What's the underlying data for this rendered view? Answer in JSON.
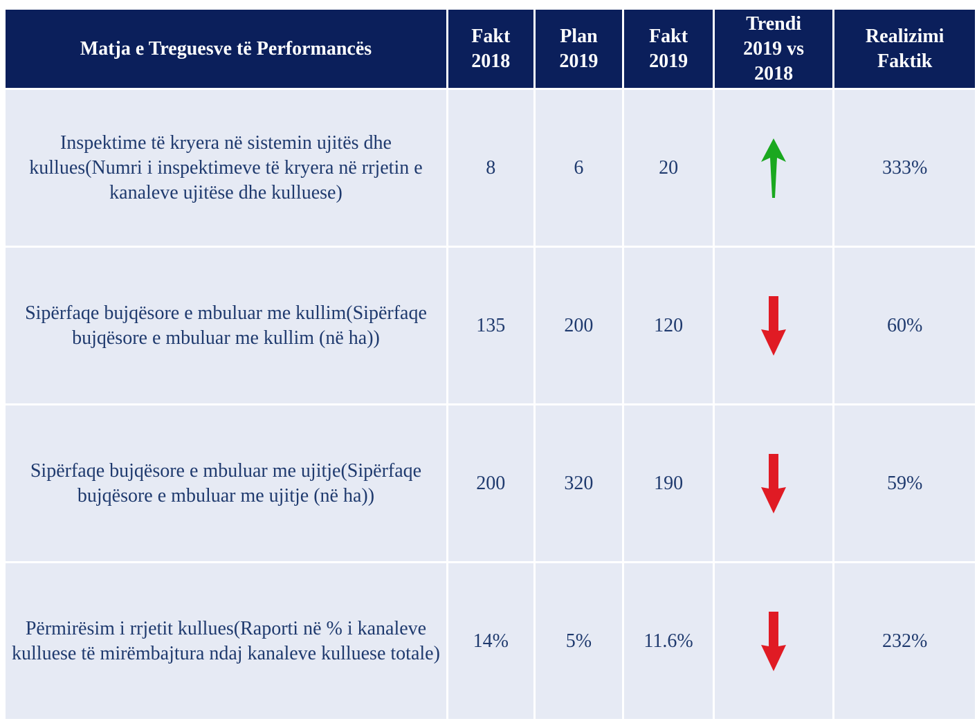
{
  "table": {
    "header": [
      "Matja e Treguesve të Performancës",
      "Fakt 2018",
      "Plan 2019",
      "Fakt 2019",
      "Trendi 2019 vs 2018",
      "Realizimi Faktik"
    ],
    "rows": [
      {
        "indicator": "Inspektime të kryera në sistemin ujitës dhe kullues(Numri i inspektimeve të kryera në rrjetin e kanaleve ujitëse dhe kulluese)",
        "fakt_2018": "8",
        "plan_2019": "6",
        "fakt_2019": "20",
        "trend": "up",
        "realizimi": "333%"
      },
      {
        "indicator": "Sipërfaqe bujqësore e mbuluar me kullim(Sipërfaqe bujqësore e mbuluar me kullim (në ha))",
        "fakt_2018": "135",
        "plan_2019": "200",
        "fakt_2019": "120",
        "trend": "down",
        "realizimi": "60%"
      },
      {
        "indicator": "Sipërfaqe bujqësore e mbuluar me ujitje(Sipërfaqe bujqësore e mbuluar me ujitje (në ha))",
        "fakt_2018": "200",
        "plan_2019": "320",
        "fakt_2019": "190",
        "trend": "down",
        "realizimi": "59%"
      },
      {
        "indicator": "Përmirësim i rrjetit kullues(Raporti në % i kanaleve kulluese të mirëmbajtura ndaj kanaleve kulluese totale)",
        "fakt_2018": "14%",
        "plan_2019": "5%",
        "fakt_2019": "11.6%",
        "trend": "down",
        "realizimi": "232%"
      }
    ]
  }
}
